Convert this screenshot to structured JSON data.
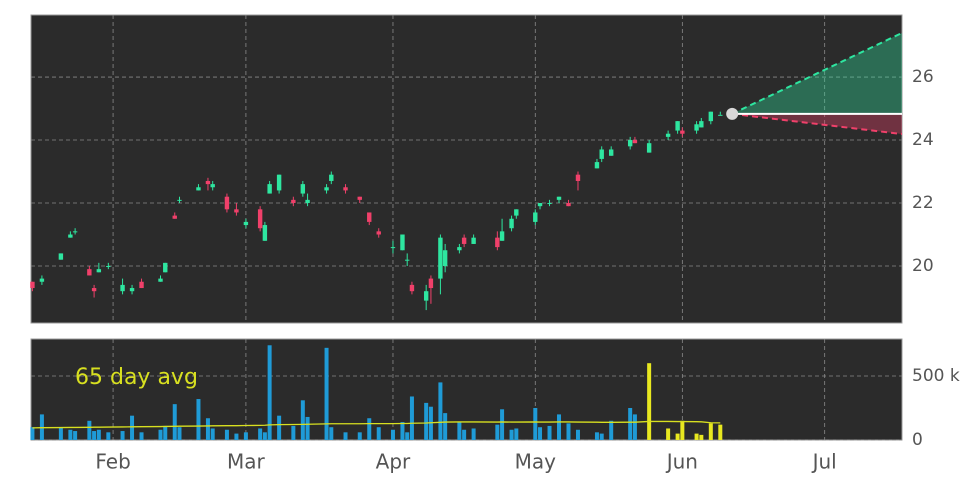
{
  "chart_data": {
    "type": "candlestick",
    "x": [
      15,
      17,
      21,
      23,
      24,
      27,
      28,
      29,
      31,
      34,
      36,
      38,
      42,
      43,
      45,
      46,
      50,
      52,
      53,
      56,
      58,
      60,
      63,
      64,
      65,
      67,
      70,
      72,
      73,
      77,
      78,
      81,
      84,
      86,
      88,
      91,
      93,
      94,
      95,
      98,
      99,
      101,
      102,
      105,
      106,
      108,
      113,
      114,
      116,
      117,
      121,
      122,
      124,
      126,
      128,
      130,
      134,
      135,
      137,
      141,
      142,
      145,
      149,
      151,
      152,
      155,
      156,
      158,
      160
    ],
    "open": [
      19.5,
      19.5,
      20.2,
      20.9,
      21.1,
      19.9,
      19.3,
      19.8,
      20.0,
      19.2,
      19.2,
      19.5,
      19.5,
      19.8,
      21.6,
      22.1,
      22.4,
      22.7,
      22.5,
      22.2,
      21.8,
      21.3,
      21.8,
      20.8,
      22.3,
      22.4,
      22.1,
      22.3,
      22.0,
      22.4,
      22.7,
      22.5,
      22.2,
      21.7,
      21.1,
      20.6,
      20.5,
      20.2,
      19.4,
      18.9,
      19.6,
      19.6,
      20.0,
      20.5,
      20.9,
      20.7,
      20.9,
      20.8,
      21.2,
      21.6,
      21.4,
      21.9,
      22.0,
      22.1,
      22.0,
      22.9,
      23.1,
      23.4,
      23.5,
      23.8,
      24.0,
      23.6,
      24.1,
      24.3,
      24.3,
      24.3,
      24.4,
      24.6,
      24.8
    ],
    "high": [
      19.5,
      19.7,
      20.4,
      21.1,
      21.2,
      20.0,
      19.4,
      20.1,
      20.1,
      19.6,
      19.4,
      19.6,
      19.7,
      20.1,
      21.7,
      22.2,
      22.6,
      22.8,
      22.7,
      22.3,
      22.0,
      21.5,
      21.9,
      21.4,
      22.7,
      22.9,
      22.2,
      22.7,
      22.3,
      22.6,
      23.0,
      22.6,
      22.2,
      21.7,
      21.2,
      20.8,
      21.0,
      20.4,
      19.5,
      19.4,
      19.7,
      21.0,
      20.7,
      20.7,
      21.0,
      21.0,
      21.1,
      21.5,
      21.6,
      21.8,
      21.8,
      22.0,
      22.1,
      22.2,
      22.1,
      23.0,
      23.4,
      23.8,
      23.8,
      24.1,
      24.1,
      24.0,
      24.3,
      24.6,
      24.4,
      24.6,
      24.7,
      24.9,
      24.9
    ],
    "low": [
      19.2,
      19.4,
      20.2,
      20.9,
      21.0,
      19.7,
      19.0,
      19.8,
      19.9,
      19.1,
      19.1,
      19.3,
      19.5,
      19.8,
      21.5,
      22.0,
      22.4,
      22.4,
      22.4,
      21.7,
      21.6,
      21.2,
      21.1,
      20.8,
      22.3,
      22.3,
      21.9,
      22.2,
      21.9,
      22.3,
      22.6,
      22.3,
      22.0,
      21.3,
      20.9,
      20.4,
      20.5,
      20.0,
      19.1,
      18.6,
      18.8,
      19.1,
      19.8,
      20.4,
      20.6,
      20.7,
      20.5,
      20.8,
      21.1,
      21.5,
      21.3,
      21.8,
      21.9,
      22.0,
      21.9,
      22.4,
      23.1,
      23.3,
      23.5,
      23.7,
      23.9,
      23.6,
      24.0,
      24.2,
      24.1,
      24.2,
      24.4,
      24.5,
      24.8
    ],
    "close": [
      19.3,
      19.6,
      20.4,
      21.0,
      21.1,
      19.7,
      19.2,
      19.9,
      20.0,
      19.4,
      19.3,
      19.3,
      19.6,
      20.1,
      21.5,
      22.1,
      22.5,
      22.6,
      22.6,
      21.8,
      21.7,
      21.4,
      21.2,
      21.3,
      22.6,
      22.9,
      22.0,
      22.6,
      22.1,
      22.5,
      22.9,
      22.4,
      22.1,
      21.4,
      21.0,
      20.6,
      21.0,
      20.2,
      19.2,
      19.2,
      19.3,
      20.9,
      20.5,
      20.6,
      20.7,
      20.9,
      20.6,
      21.1,
      21.5,
      21.8,
      21.7,
      22.0,
      22.0,
      22.2,
      21.9,
      22.7,
      23.3,
      23.7,
      23.7,
      24.0,
      23.9,
      23.9,
      24.2,
      24.6,
      24.2,
      24.5,
      24.6,
      24.9,
      24.8
    ],
    "up_color": "#2ee6a0",
    "down_color": "#f0406a",
    "volume": [
      100000,
      200000,
      100000,
      80000,
      70000,
      150000,
      70000,
      80000,
      60000,
      70000,
      190000,
      60000,
      80000,
      110000,
      280000,
      100000,
      320000,
      170000,
      90000,
      80000,
      50000,
      60000,
      90000,
      60000,
      740000,
      190000,
      110000,
      310000,
      180000,
      720000,
      100000,
      60000,
      60000,
      170000,
      100000,
      80000,
      140000,
      60000,
      340000,
      290000,
      260000,
      450000,
      210000,
      140000,
      80000,
      90000,
      120000,
      240000,
      80000,
      90000,
      250000,
      100000,
      110000,
      200000,
      130000,
      80000,
      60000,
      50000,
      150000,
      250000,
      200000,
      600000,
      90000,
      50000,
      150000,
      50000,
      40000,
      130000,
      120000
    ],
    "volume_colors": [
      "#1f9bd7",
      "#1f9bd7",
      "#1f9bd7",
      "#1f9bd7",
      "#1f9bd7",
      "#1f9bd7",
      "#1f9bd7",
      "#1f9bd7",
      "#1f9bd7",
      "#1f9bd7",
      "#1f9bd7",
      "#1f9bd7",
      "#1f9bd7",
      "#1f9bd7",
      "#1f9bd7",
      "#1f9bd7",
      "#1f9bd7",
      "#1f9bd7",
      "#1f9bd7",
      "#1f9bd7",
      "#1f9bd7",
      "#1f9bd7",
      "#1f9bd7",
      "#1f9bd7",
      "#1f9bd7",
      "#1f9bd7",
      "#1f9bd7",
      "#1f9bd7",
      "#1f9bd7",
      "#1f9bd7",
      "#1f9bd7",
      "#1f9bd7",
      "#1f9bd7",
      "#1f9bd7",
      "#1f9bd7",
      "#1f9bd7",
      "#1f9bd7",
      "#1f9bd7",
      "#1f9bd7",
      "#1f9bd7",
      "#1f9bd7",
      "#1f9bd7",
      "#1f9bd7",
      "#1f9bd7",
      "#1f9bd7",
      "#1f9bd7",
      "#1f9bd7",
      "#1f9bd7",
      "#1f9bd7",
      "#1f9bd7",
      "#1f9bd7",
      "#1f9bd7",
      "#1f9bd7",
      "#1f9bd7",
      "#1f9bd7",
      "#1f9bd7",
      "#1f9bd7",
      "#1f9bd7",
      "#1f9bd7",
      "#1f9bd7",
      "#1f9bd7",
      "#e8e820",
      "#e8e820",
      "#e8e820",
      "#e8e820",
      "#e8e820",
      "#e8e820",
      "#e8e820",
      "#e8e820"
    ],
    "volume_avg": [
      95000,
      96000,
      97000,
      98000,
      98000,
      99000,
      100000,
      100000,
      101000,
      102000,
      103000,
      104000,
      105000,
      106000,
      107000,
      108000,
      109000,
      110000,
      111000,
      112000,
      112000,
      113000,
      114000,
      115000,
      118000,
      120000,
      121000,
      122000,
      123000,
      126000,
      127000,
      127000,
      127000,
      128000,
      128000,
      128000,
      129000,
      129000,
      131000,
      133000,
      135000,
      138000,
      140000,
      141000,
      141000,
      141000,
      140000,
      141000,
      140000,
      140000,
      141000,
      140000,
      140000,
      141000,
      141000,
      140000,
      139000,
      138000,
      138000,
      139000,
      139000,
      145000,
      145000,
      144000,
      144000,
      143000,
      142000,
      135000,
      134000
    ],
    "volume_avg_color": "#d8e020",
    "avg_label": "65 day avg",
    "forecast": {
      "x": [
        162.5,
        198.3
      ],
      "mid": [
        24.83,
        24.83
      ],
      "upper": [
        24.83,
        27.4
      ],
      "lower": [
        24.83,
        24.19
      ],
      "up_color": "#2ee6a0",
      "down_color": "#f0406a"
    },
    "xlim": [
      14.7,
      198.3
    ],
    "xticks": [
      {
        "value": 32,
        "label": "Feb"
      },
      {
        "value": 60,
        "label": "Mar"
      },
      {
        "value": 91,
        "label": "Apr"
      },
      {
        "value": 121,
        "label": "May"
      },
      {
        "value": 152,
        "label": "Jun"
      },
      {
        "value": 182,
        "label": "Jul"
      }
    ],
    "ylim": [
      18.19,
      27.97
    ],
    "yticks": [
      20,
      22,
      24,
      26
    ],
    "vlim": [
      0,
      789000
    ],
    "vticks": [
      0,
      {
        "value": 500000,
        "label": "500 k"
      }
    ],
    "grid": true
  }
}
